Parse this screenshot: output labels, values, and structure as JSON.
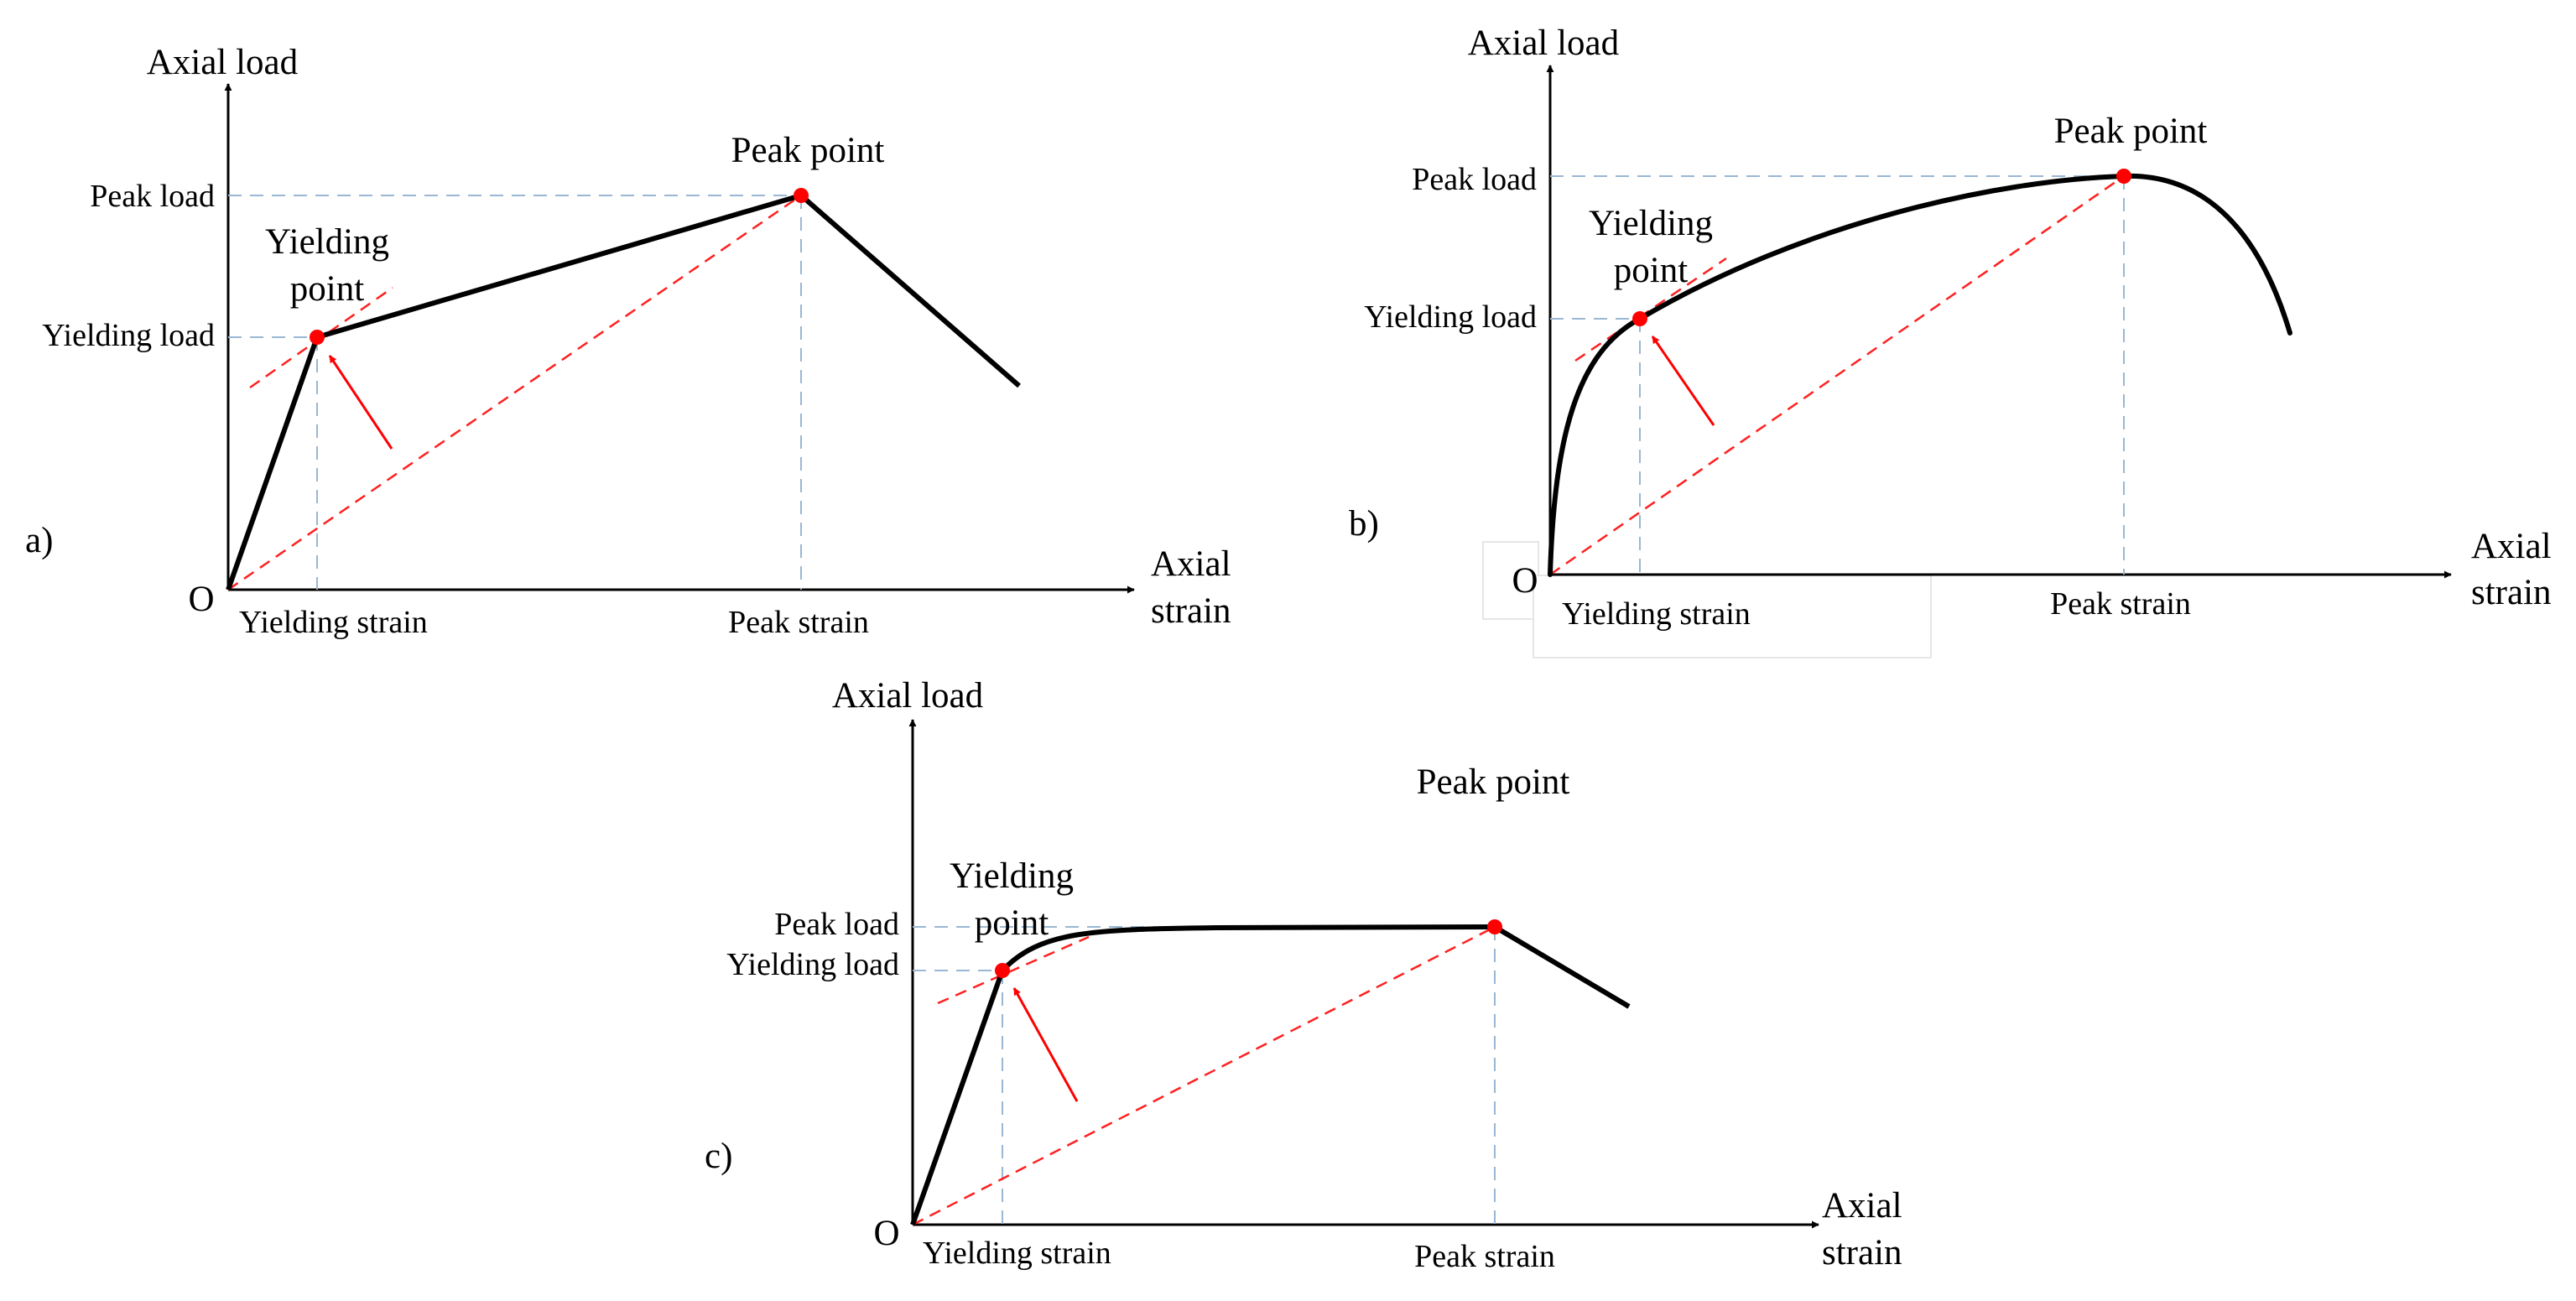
{
  "panels": {
    "a": {
      "tag": "a)",
      "origin": "O",
      "y_axis_label": "Axial load",
      "x_axis_label": [
        "Axial",
        "strain"
      ],
      "peak_load": "Peak load",
      "yielding_load": "Yielding load",
      "yielding_strain": "Yielding strain",
      "peak_strain": "Peak strain",
      "peak_point": "Peak point",
      "yielding_point": [
        "Yielding",
        "point"
      ]
    },
    "b": {
      "tag": "b)",
      "origin": "O",
      "y_axis_label": "Axial load",
      "x_axis_label": [
        "Axial",
        "strain"
      ],
      "peak_load": "Peak load",
      "yielding_load": "Yielding load",
      "yielding_strain": "Yielding strain",
      "peak_strain": "Peak strain",
      "peak_point": "Peak point",
      "yielding_point": [
        "Yielding",
        "point"
      ]
    },
    "c": {
      "tag": "c)",
      "origin": "O",
      "y_axis_label": "Axial load",
      "x_axis_label": [
        "Axial",
        "strain"
      ],
      "peak_load": "Peak load",
      "yielding_load": "Yielding load",
      "yielding_strain": "Yielding strain",
      "peak_strain": "Peak strain",
      "peak_point": "Peak point",
      "yielding_point": [
        "Yielding",
        "point"
      ]
    }
  },
  "colors": {
    "curve": "#000000",
    "guide": "#9ab7d3",
    "secant": "#ff2020",
    "marker": "#ff0000"
  }
}
